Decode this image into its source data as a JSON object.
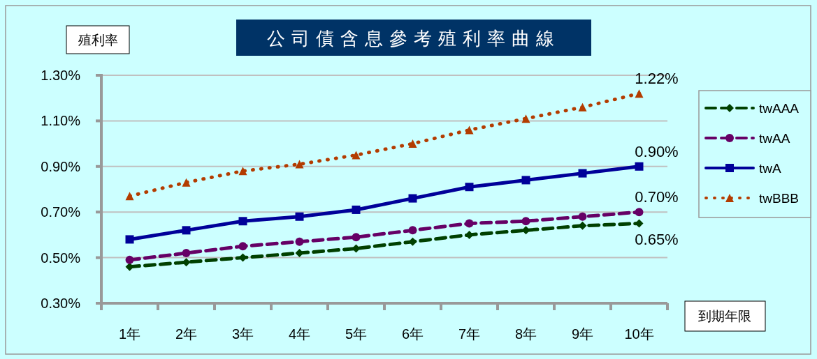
{
  "chart_data": {
    "type": "line",
    "title": "公司債含息參考殖利率曲線",
    "ylabel": "殖利率",
    "xlabel": "到期年限",
    "categories": [
      "1年",
      "2年",
      "3年",
      "4年",
      "5年",
      "6年",
      "7年",
      "8年",
      "9年",
      "10年"
    ],
    "ylim": [
      0.3,
      1.3
    ],
    "yticks": [
      {
        "value": 0.3,
        "label": "0.30%"
      },
      {
        "value": 0.5,
        "label": "0.50%"
      },
      {
        "value": 0.7,
        "label": "0.70%"
      },
      {
        "value": 0.9,
        "label": "0.90%"
      },
      {
        "value": 1.1,
        "label": "1.10%"
      },
      {
        "value": 1.3,
        "label": "1.30%"
      }
    ],
    "grid": "y",
    "legend": "right",
    "series": [
      {
        "name": "twAAA",
        "color": "#004000",
        "marker": "diamond",
        "line_style": "dashed",
        "values": [
          0.46,
          0.48,
          0.5,
          0.52,
          0.54,
          0.57,
          0.6,
          0.62,
          0.64,
          0.65
        ],
        "value_labels": [
          null,
          null,
          null,
          null,
          null,
          null,
          null,
          null,
          null,
          "0.65%"
        ]
      },
      {
        "name": "twAA",
        "color": "#660066",
        "marker": "circle",
        "line_style": "dashed",
        "values": [
          0.49,
          0.52,
          0.55,
          0.57,
          0.59,
          0.62,
          0.65,
          0.66,
          0.68,
          0.7
        ],
        "value_labels": [
          null,
          null,
          null,
          null,
          null,
          null,
          null,
          null,
          null,
          "0.70%"
        ]
      },
      {
        "name": "twA",
        "color": "#000099",
        "marker": "square",
        "line_style": "solid",
        "values": [
          0.58,
          0.62,
          0.66,
          0.68,
          0.71,
          0.76,
          0.81,
          0.84,
          0.87,
          0.9
        ],
        "value_labels": [
          null,
          null,
          null,
          null,
          null,
          null,
          null,
          null,
          null,
          "0.90%"
        ]
      },
      {
        "name": "twBBB",
        "color": "#b33c00",
        "marker": "triangle",
        "line_style": "dotted",
        "values": [
          0.77,
          0.83,
          0.88,
          0.91,
          0.95,
          1.0,
          1.06,
          1.11,
          1.16,
          1.22
        ],
        "value_labels": [
          null,
          null,
          null,
          null,
          null,
          null,
          null,
          null,
          null,
          "1.22%"
        ]
      }
    ]
  }
}
